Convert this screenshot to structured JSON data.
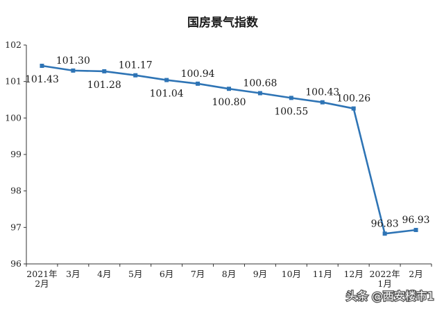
{
  "chart_data": {
    "type": "line",
    "title": "国房景气指数",
    "categories": [
      [
        "2021年",
        "2月"
      ],
      [
        "3月"
      ],
      [
        "4月"
      ],
      [
        "5月"
      ],
      [
        "6月"
      ],
      [
        "7月"
      ],
      [
        "8月"
      ],
      [
        "9月"
      ],
      [
        "10月"
      ],
      [
        "11月"
      ],
      [
        "12月"
      ],
      [
        "2022年",
        "1月"
      ],
      [
        "2月"
      ]
    ],
    "values": [
      101.43,
      101.3,
      101.28,
      101.17,
      101.04,
      100.94,
      100.8,
      100.68,
      100.55,
      100.43,
      100.26,
      96.83,
      96.93
    ],
    "data_labels": [
      "101.43",
      "101.30",
      "101.28",
      "101.17",
      "101.04",
      "100.94",
      "100.80",
      "100.68",
      "100.55",
      "100.43",
      "100.26",
      "96.83",
      "96.93"
    ],
    "label_position": [
      "below",
      "above",
      "below",
      "above",
      "below",
      "above",
      "below",
      "above",
      "below",
      "above",
      "above",
      "above",
      "above"
    ],
    "ylim": [
      96,
      102
    ],
    "yticks": [
      96,
      97,
      98,
      99,
      100,
      101,
      102
    ],
    "grid": false,
    "line_color": "#2e74b5",
    "xlabel": "",
    "ylabel": ""
  },
  "watermark": "头条 @西安楼市1"
}
